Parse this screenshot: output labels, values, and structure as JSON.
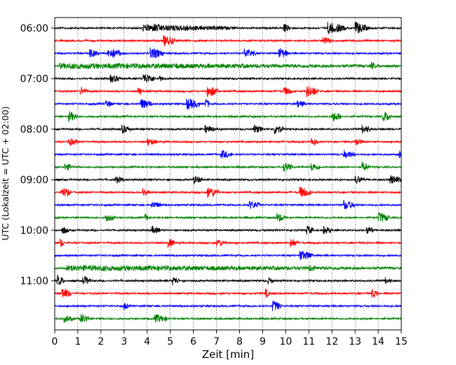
{
  "chart_data": {
    "type": "line",
    "xlabel": "Zeit  [min]",
    "ylabel": "UTC (Lokalzeit = UTC + 02:00)",
    "xlim": [
      0,
      15
    ],
    "x_ticks": [
      "0",
      "1",
      "2",
      "3",
      "4",
      "5",
      "6",
      "7",
      "8",
      "9",
      "10",
      "11",
      "12",
      "13",
      "14",
      "15"
    ],
    "y_tick_labels": [
      "06:00",
      "07:00",
      "08:00",
      "09:00",
      "10:00",
      "11:00"
    ],
    "y_tick_rows": [
      0,
      4,
      8,
      12,
      16,
      20
    ],
    "row_minutes": 15,
    "start_time": "06:00",
    "trace_colors": [
      "#000000",
      "#ff0000",
      "#0000ff",
      "#008000"
    ],
    "x_grid": "dotted",
    "trace_count": 24,
    "bursts": [
      [
        [
          3.8,
          4.0,
          0.4
        ],
        [
          4.3,
          0.4,
          0.7
        ],
        [
          5.6,
          0.4,
          0.5
        ],
        [
          9.9,
          0.3,
          0.6
        ],
        [
          11.8,
          0.5,
          1.0
        ],
        [
          12.2,
          0.4,
          0.6
        ],
        [
          13.0,
          0.5,
          1.0
        ],
        [
          13.3,
          0.3,
          0.5
        ]
      ],
      [
        [
          4.7,
          0.5,
          0.9
        ],
        [
          11.6,
          0.4,
          0.5
        ]
      ],
      [
        [
          1.5,
          0.4,
          0.6
        ],
        [
          2.3,
          0.6,
          0.9
        ],
        [
          4.1,
          0.6,
          0.9
        ],
        [
          8.2,
          0.5,
          0.7
        ],
        [
          9.7,
          0.4,
          0.9
        ]
      ],
      [
        [
          0.2,
          14.7,
          0.25
        ],
        [
          5.2,
          0.3,
          0.4
        ],
        [
          13.7,
          0.2,
          0.6
        ]
      ],
      [
        [
          2.4,
          0.5,
          0.5
        ],
        [
          3.8,
          0.5,
          0.9
        ],
        [
          4.5,
          0.2,
          0.4
        ]
      ],
      [
        [
          1.1,
          0.3,
          0.6
        ],
        [
          3.6,
          0.2,
          0.6
        ],
        [
          6.6,
          0.5,
          0.9
        ],
        [
          9.9,
          0.4,
          0.6
        ],
        [
          10.9,
          0.5,
          1.0
        ]
      ],
      [
        [
          2.2,
          0.3,
          0.5
        ],
        [
          3.7,
          0.5,
          0.8
        ],
        [
          5.7,
          0.6,
          0.9
        ],
        [
          6.5,
          0.2,
          0.9
        ],
        [
          10.5,
          0.4,
          0.5
        ]
      ],
      [
        [
          0.6,
          0.4,
          0.8
        ],
        [
          12.0,
          0.4,
          0.8
        ],
        [
          14.2,
          0.4,
          0.8
        ]
      ],
      [
        [
          2.9,
          0.4,
          0.6
        ],
        [
          6.5,
          0.4,
          0.6
        ],
        [
          8.6,
          0.4,
          0.6
        ],
        [
          9.5,
          0.4,
          0.8
        ],
        [
          13.3,
          0.4,
          0.6
        ]
      ],
      [
        [
          0.6,
          0.4,
          0.5
        ],
        [
          4.0,
          0.4,
          0.5
        ],
        [
          11.1,
          0.3,
          0.6
        ],
        [
          13.0,
          0.3,
          0.7
        ]
      ],
      [
        [
          7.2,
          0.5,
          0.6
        ],
        [
          12.5,
          0.5,
          0.6
        ],
        [
          14.9,
          0.3,
          0.7
        ]
      ],
      [
        [
          0.4,
          0.4,
          0.5
        ],
        [
          9.9,
          0.4,
          0.7
        ],
        [
          11.1,
          0.4,
          0.6
        ],
        [
          13.3,
          0.3,
          0.8
        ]
      ],
      [
        [
          2.6,
          0.4,
          0.5
        ],
        [
          6.0,
          0.4,
          0.6
        ],
        [
          13.0,
          0.4,
          0.6
        ],
        [
          14.5,
          0.5,
          0.7
        ]
      ],
      [
        [
          0.3,
          0.4,
          0.8
        ],
        [
          3.8,
          0.3,
          0.6
        ],
        [
          6.6,
          0.5,
          0.9
        ],
        [
          10.6,
          0.5,
          0.9
        ]
      ],
      [
        [
          4.2,
          0.4,
          0.5
        ],
        [
          8.4,
          0.5,
          0.6
        ],
        [
          12.5,
          0.5,
          0.7
        ]
      ],
      [
        [
          2.2,
          0.4,
          0.6
        ],
        [
          3.9,
          0.2,
          0.6
        ],
        [
          9.6,
          0.4,
          0.7
        ],
        [
          14.0,
          0.5,
          0.8
        ]
      ],
      [
        [
          0.3,
          0.3,
          0.6
        ],
        [
          4.2,
          0.4,
          0.5
        ],
        [
          10.9,
          0.3,
          0.7
        ],
        [
          11.6,
          0.4,
          0.6
        ],
        [
          13.5,
          0.3,
          0.6
        ]
      ],
      [
        [
          0.2,
          0.2,
          0.8
        ],
        [
          4.9,
          0.3,
          0.7
        ],
        [
          7.0,
          0.4,
          0.6
        ],
        [
          10.2,
          0.3,
          0.7
        ]
      ],
      [
        [
          10.6,
          0.5,
          0.8
        ],
        [
          10.9,
          0.3,
          0.6
        ]
      ],
      [
        [
          0.5,
          14.5,
          0.25
        ],
        [
          11.0,
          0.4,
          0.5
        ]
      ],
      [
        [
          0.1,
          0.3,
          0.9
        ],
        [
          1.2,
          0.4,
          0.7
        ],
        [
          5.1,
          0.3,
          0.6
        ],
        [
          9.2,
          0.3,
          0.5
        ],
        [
          14.3,
          0.3,
          0.4
        ]
      ],
      [
        [
          0.3,
          0.4,
          0.9
        ],
        [
          9.1,
          0.2,
          0.7
        ],
        [
          13.7,
          0.3,
          0.7
        ]
      ],
      [
        [
          3.0,
          0.2,
          0.5
        ],
        [
          9.4,
          0.4,
          0.9
        ]
      ],
      [
        [
          0.4,
          0.4,
          0.5
        ],
        [
          1.1,
          0.4,
          0.8
        ],
        [
          4.3,
          0.6,
          0.6
        ]
      ]
    ]
  }
}
